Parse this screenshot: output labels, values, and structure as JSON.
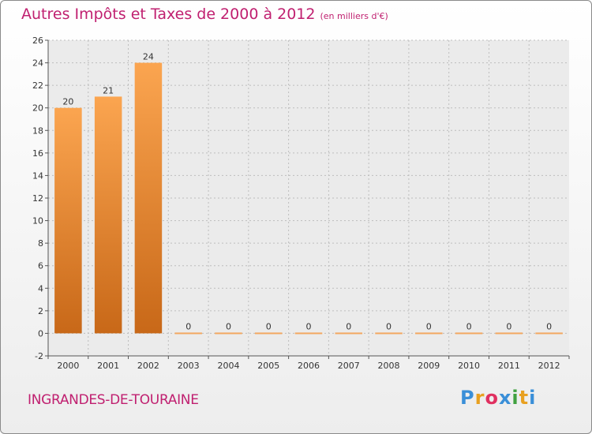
{
  "title": "Autres Impôts et Taxes de 2000 à 2012",
  "unit_note": "(en milliers d'€)",
  "commune": "INGRANDES-DE-TOURAINE",
  "logo": {
    "letters": [
      "P",
      "r",
      "o",
      "x",
      "i",
      "t",
      "i"
    ],
    "colors": [
      "#3a8fd8",
      "#e8a020",
      "#e03060",
      "#3a8fd8",
      "#40a040",
      "#e8a020",
      "#3a8fd8"
    ]
  },
  "chart_data": {
    "type": "bar",
    "title": "Autres Impôts et Taxes de 2000 à 2012",
    "xlabel": "",
    "ylabel": "",
    "categories": [
      "2000",
      "2001",
      "2002",
      "2003",
      "2004",
      "2005",
      "2006",
      "2007",
      "2008",
      "2009",
      "2010",
      "2011",
      "2012"
    ],
    "values": [
      20,
      21,
      24,
      0,
      0,
      0,
      0,
      0,
      0,
      0,
      0,
      0,
      0
    ],
    "ylim": [
      -2,
      26
    ],
    "yticks": [
      -2,
      0,
      2,
      4,
      6,
      8,
      10,
      12,
      14,
      16,
      18,
      20,
      22,
      24,
      26
    ],
    "grid": true,
    "legend": "none",
    "bar_color": "#f08a30"
  }
}
